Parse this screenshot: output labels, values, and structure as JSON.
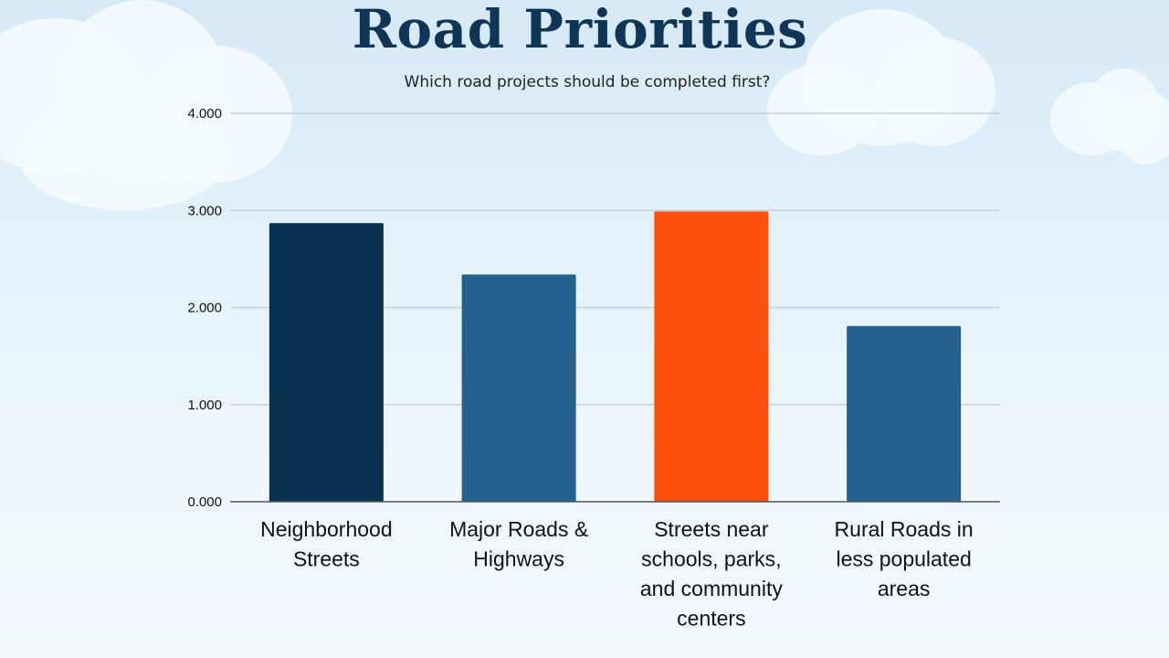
{
  "title": "Road Priorities",
  "subtitle": "Which road projects should be completed first?",
  "colors": {
    "background": "#e3f1fa",
    "title": "#0f3557",
    "bar_dark_navy": "#08324f",
    "bar_blue": "#25618f",
    "bar_orange": "#fd500e",
    "grid": "#c9d1d6",
    "axis": "#555555"
  },
  "chart_data": {
    "type": "bar",
    "title": "Road Priorities",
    "subtitle": "Which road projects should be completed first?",
    "xlabel": "",
    "ylabel": "",
    "ylim": [
      0,
      4
    ],
    "yticks": [
      0,
      1,
      2,
      3,
      4
    ],
    "ytick_labels": [
      "0.000",
      "1.000",
      "2.000",
      "3.000",
      "4.000"
    ],
    "grid": true,
    "legend": "none",
    "categories": [
      "Neighborhood Streets",
      "Major Roads & Highways",
      "Streets near schools, parks, and community centers",
      "Rural Roads in less populated areas"
    ],
    "category_label_lines": [
      [
        "Neighborhood",
        "Streets"
      ],
      [
        "Major Roads &",
        "Highways"
      ],
      [
        "Streets near",
        "schools, parks,",
        "and community",
        "centers"
      ],
      [
        "Rural Roads in",
        "less populated",
        "areas"
      ]
    ],
    "values": [
      2.87,
      2.34,
      2.99,
      1.81
    ],
    "bar_colors": [
      "#08324f",
      "#25618f",
      "#fd500e",
      "#25618f"
    ]
  }
}
